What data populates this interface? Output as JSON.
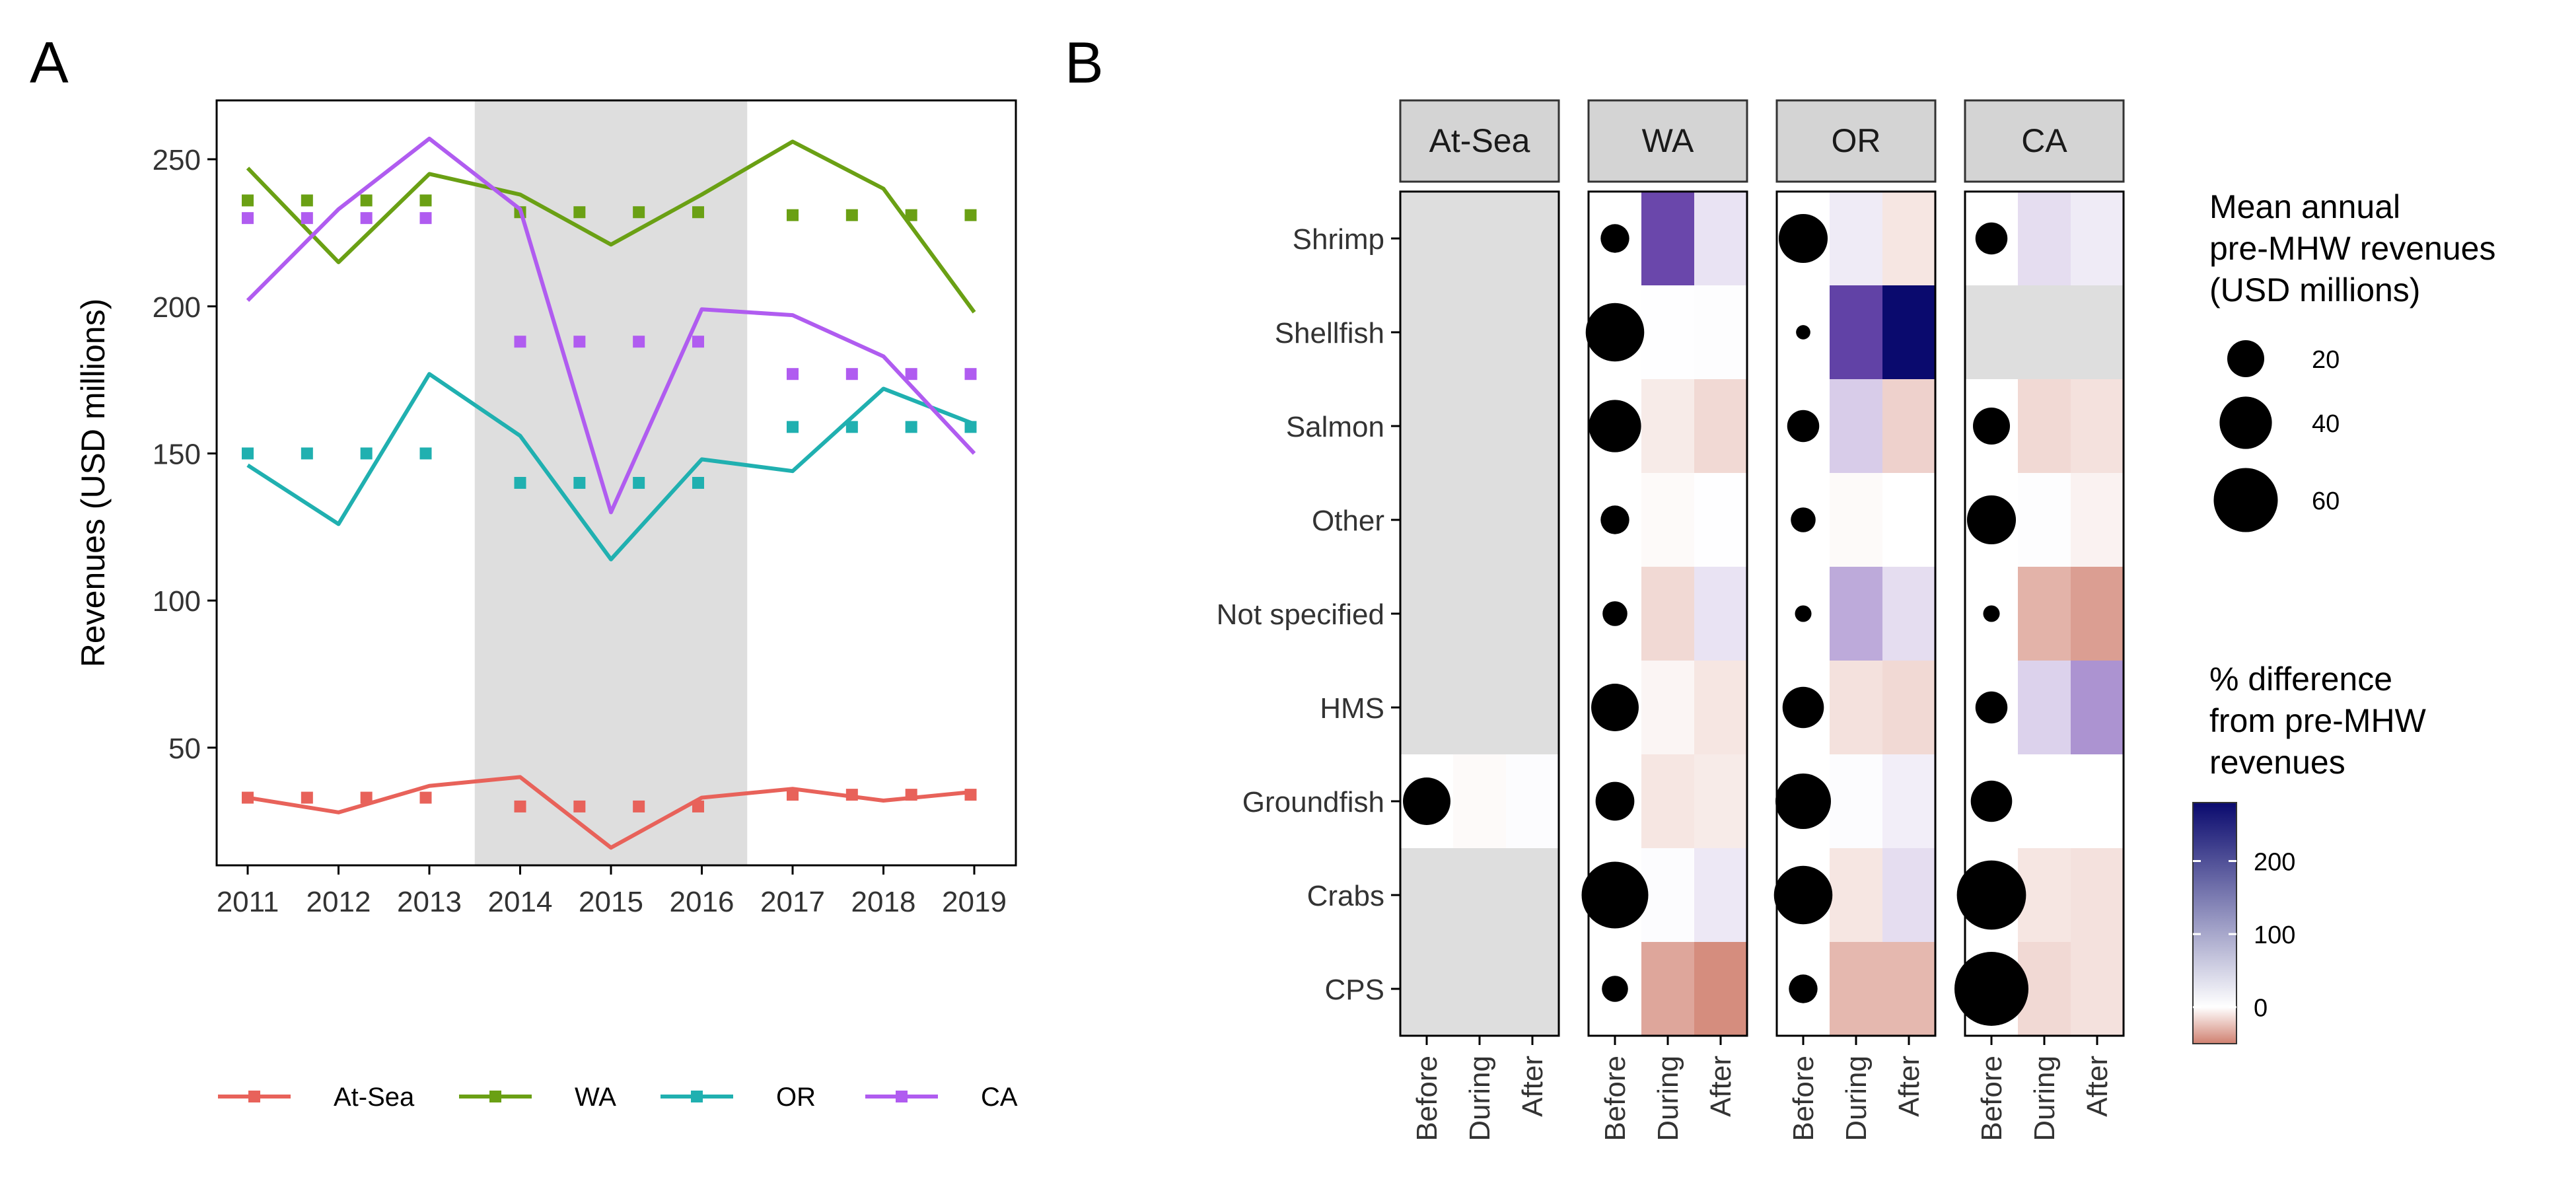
{
  "chart_data": [
    {
      "panel": "A",
      "type": "line",
      "ylabel": "Revenues (USD millions)",
      "xlabel": "",
      "x": [
        2011,
        2012,
        2013,
        2014,
        2015,
        2016,
        2017,
        2018,
        2019
      ],
      "xticks": [
        "2011",
        "2012",
        "2013",
        "2014",
        "2015",
        "2016",
        "2017",
        "2018",
        "2019"
      ],
      "yticks": [
        50,
        100,
        150,
        200,
        250
      ],
      "ylim": [
        10,
        270
      ],
      "shaded_period": [
        2013.5,
        2016.5
      ],
      "grid": false,
      "legend_position": "bottom",
      "series": [
        {
          "name": "At-Sea",
          "color": "#E8625A",
          "values": [
            33,
            28,
            37,
            40,
            16,
            33,
            36,
            32,
            35
          ],
          "period_means": [
            {
              "from": 2011,
              "to": 2013,
              "value": 33
            },
            {
              "from": 2014,
              "to": 2016,
              "value": 30
            },
            {
              "from": 2017,
              "to": 2019,
              "value": 34
            }
          ]
        },
        {
          "name": "WA",
          "color": "#6AA014",
          "values": [
            247,
            215,
            245,
            238,
            221,
            238,
            256,
            240,
            198
          ],
          "period_means": [
            {
              "from": 2011,
              "to": 2013,
              "value": 236
            },
            {
              "from": 2014,
              "to": 2016,
              "value": 232
            },
            {
              "from": 2017,
              "to": 2019,
              "value": 231
            }
          ]
        },
        {
          "name": "OR",
          "color": "#20B0B0",
          "values": [
            146,
            126,
            177,
            156,
            114,
            148,
            144,
            172,
            160
          ],
          "period_means": [
            {
              "from": 2011,
              "to": 2013,
              "value": 150
            },
            {
              "from": 2014,
              "to": 2016,
              "value": 140
            },
            {
              "from": 2017,
              "to": 2019,
              "value": 159
            }
          ]
        },
        {
          "name": "CA",
          "color": "#B05CF0",
          "values": [
            202,
            233,
            257,
            233,
            130,
            199,
            197,
            183,
            150
          ],
          "period_means": [
            {
              "from": 2011,
              "to": 2013,
              "value": 230
            },
            {
              "from": 2014,
              "to": 2016,
              "value": 188
            },
            {
              "from": 2017,
              "to": 2019,
              "value": 177
            }
          ]
        }
      ]
    },
    {
      "panel": "B",
      "type": "heatmap",
      "facets": [
        "At-Sea",
        "WA",
        "OR",
        "CA"
      ],
      "rows": [
        "Shrimp",
        "Shellfish",
        "Salmon",
        "Other",
        "Not specified",
        "HMS",
        "Groundfish",
        "Crabs",
        "CPS"
      ],
      "columns": [
        "Before",
        "During",
        "After"
      ],
      "size_legend": {
        "title": [
          "Mean annual",
          "pre-MHW revenues",
          "(USD millions)"
        ],
        "values": [
          20,
          40,
          60
        ]
      },
      "color_legend": {
        "title": [
          "% difference",
          "from pre-MHW",
          "revenues"
        ],
        "ticks": [
          0,
          100,
          200
        ],
        "min": -50,
        "max": 280,
        "low_color": "#D08070",
        "mid_color": "#FFFFFF",
        "high_color": "#0A0A6E"
      },
      "cells": {
        "At-Sea": {
          "Shrimp": null,
          "Shellfish": null,
          "Salmon": null,
          "Other": null,
          "Not specified": null,
          "HMS": null,
          "Groundfish": {
            "before": 33,
            "during": -2,
            "after": 3
          },
          "Crabs": null,
          "CPS": null
        },
        "WA": {
          "Shrimp": {
            "before": 12,
            "during": 170,
            "after": 25
          },
          "Shellfish": {
            "before": 50,
            "during": 1,
            "after": 2
          },
          "Salmon": {
            "before": 40,
            "during": -8,
            "after": -15
          },
          "Other": {
            "before": 12,
            "during": -2,
            "after": 1
          },
          "Not specified": {
            "before": 9,
            "during": -15,
            "after": 25
          },
          "HMS": {
            "before": 33,
            "during": -4,
            "after": -10
          },
          "Groundfish": {
            "before": 22,
            "during": -10,
            "after": -8
          },
          "Crabs": {
            "before": 65,
            "during": 3,
            "after": 20
          },
          "CPS": {
            "before": 10,
            "during": -35,
            "after": -45
          }
        },
        "OR": {
          "Shrimp": {
            "before": 35,
            "during": 18,
            "after": -10
          },
          "Shellfish": {
            "before": 3,
            "during": 180,
            "after": 280
          },
          "Salmon": {
            "before": 15,
            "during": 45,
            "after": -18
          },
          "Other": {
            "before": 9,
            "during": -2,
            "after": 0
          },
          "Not specified": {
            "before": 4,
            "during": 75,
            "after": 30
          },
          "HMS": {
            "before": 25,
            "during": -12,
            "after": -15
          },
          "Groundfish": {
            "before": 45,
            "during": 3,
            "after": 15
          },
          "Crabs": {
            "before": 50,
            "during": -10,
            "after": 30
          },
          "CPS": {
            "before": 12,
            "during": -28,
            "after": -28
          }
        },
        "CA": {
          "Shrimp": {
            "before": 15,
            "during": 30,
            "after": 18
          },
          "Shellfish": null,
          "Salmon": {
            "before": 20,
            "during": -15,
            "after": -12
          },
          "Other": {
            "before": 35,
            "during": 2,
            "after": -5
          },
          "Not specified": {
            "before": 4,
            "during": -30,
            "after": -38
          },
          "HMS": {
            "before": 15,
            "during": 40,
            "after": 95
          },
          "Groundfish": {
            "before": 25,
            "during": 0,
            "after": 0
          },
          "Crabs": {
            "before": 70,
            "during": -10,
            "after": -12
          },
          "CPS": {
            "before": 80,
            "during": -15,
            "after": -12
          }
        }
      }
    }
  ],
  "panel_labels": {
    "a": "A",
    "b": "B"
  }
}
